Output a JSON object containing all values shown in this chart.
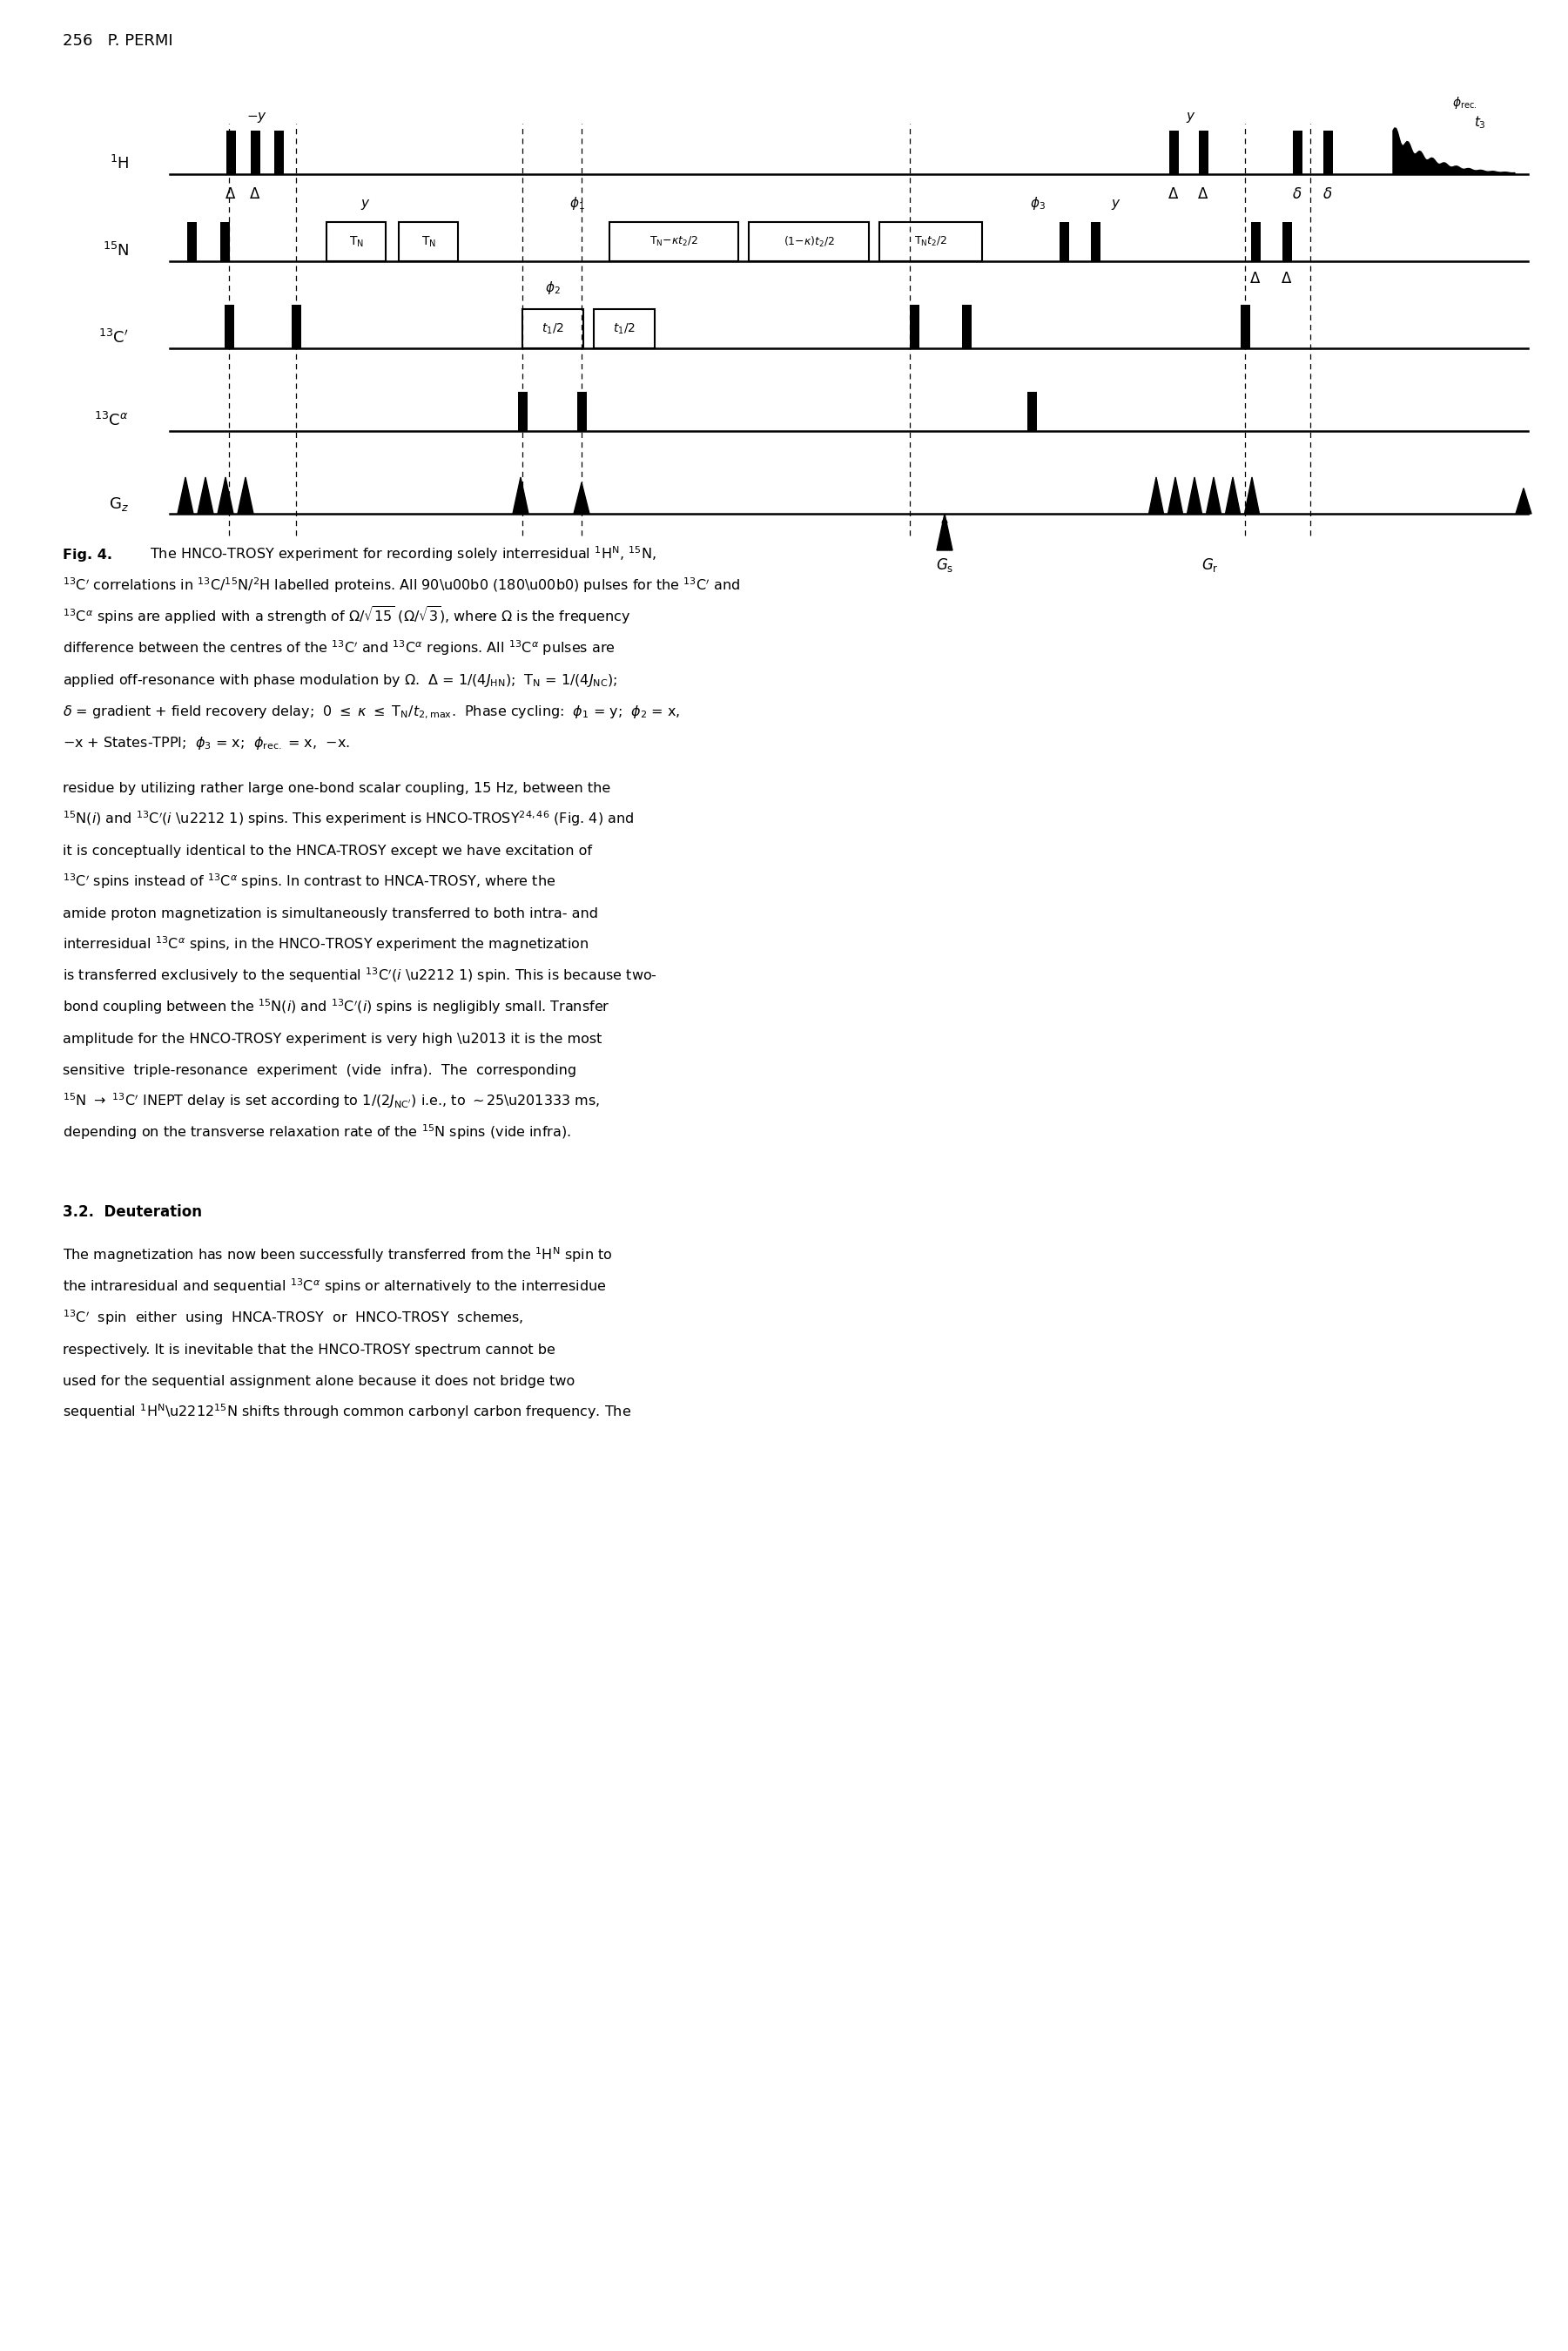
{
  "page_header": "256   P. PERMI",
  "background_color": "#ffffff",
  "figure_width": 18.01,
  "figure_height": 27.0,
  "cap_lines": [
    "  The HNCO-TROSY experiment for recording solely interresidual $^{1}$H$^{\\mathrm{N}}$, $^{15}$N,",
    "$^{13}$C$^{\\prime}$ correlations in $^{13}$C/$^{15}$N/$^{2}$H labelled proteins. All 90\\u00b0 (180\\u00b0) pulses for the $^{13}$C$^{\\prime}$ and",
    "$^{13}$C$^{\\alpha}$ spins are applied with a strength of $\\Omega$/$\\sqrt{15}$ ($\\Omega$/$\\sqrt{3}$), where $\\Omega$ is the frequency",
    "difference between the centres of the $^{13}$C$^{\\prime}$ and $^{13}$C$^{\\alpha}$ regions. All $^{13}$C$^{\\alpha}$ pulses are",
    "applied off-resonance with phase modulation by $\\Omega$.  $\\Delta$ = 1/(4$J_{\\mathrm{HN}}$);  T$_{\\mathrm{N}}$ = 1/(4$J_{\\mathrm{NC}}$);",
    "$\\delta$ = gradient + field recovery delay;  0 $\\leq$ $\\kappa$ $\\leq$ T$_{\\mathrm{N}}$/$t_{2,\\mathrm{max}}$.  Phase cycling:  $\\phi_1$ = y;  $\\phi_2$ = x,",
    "$-$x + States-TPPI;  $\\phi_3$ = x;  $\\phi_{\\mathrm{rec.}}$ = x,  $-$x."
  ],
  "body_lines": [
    "residue by utilizing rather large one-bond scalar coupling, 15 Hz, between the",
    "$^{15}$N($i$) and $^{13}$C$^{\\prime}$($i$ \\u2212 1) spins. This experiment is HNCO-TROSY$^{24,46}$ (Fig. 4) and",
    "it is conceptually identical to the HNCA-TROSY except we have excitation of",
    "$^{13}$C$^{\\prime}$ spins instead of $^{13}$C$^{\\alpha}$ spins. In contrast to HNCA-TROSY, where the",
    "amide proton magnetization is simultaneously transferred to both intra- and",
    "interresidual $^{13}$C$^{\\alpha}$ spins, in the HNCO-TROSY experiment the magnetization",
    "is transferred exclusively to the sequential $^{13}$C$^{\\prime}$($i$ \\u2212 1) spin. This is because two-",
    "bond coupling between the $^{15}$N($i$) and $^{13}$C$^{\\prime}$($i$) spins is negligibly small. Transfer",
    "amplitude for the HNCO-TROSY experiment is very high \\u2013 it is the most",
    "sensitive  triple-resonance  experiment  (vide  infra).  The  corresponding",
    "$^{15}$N $\\rightarrow$ $^{13}$C$^{\\prime}$ INEPT delay is set according to 1/(2$J_{\\mathrm{NC}^{\\prime}}$) i.e., to $\\sim$25\\u201333 ms,",
    "depending on the transverse relaxation rate of the $^{15}$N spins (vide infra)."
  ],
  "section_header": "3.2.  Deuteration",
  "section_lines": [
    "The magnetization has now been successfully transferred from the $^{1}$H$^{\\mathrm{N}}$ spin to",
    "the intraresidual and sequential $^{13}$C$^{\\alpha}$ spins or alternatively to the interresidue",
    "$^{13}$C$^{\\prime}$  spin  either  using  HNCA-TROSY  or  HNCO-TROSY  schemes,",
    "respectively. It is inevitable that the HNCO-TROSY spectrum cannot be",
    "used for the sequential assignment alone because it does not bridge two",
    "sequential $^{1}$H$^{\\mathrm{N}}$\\u2212$^{15}$N shifts through common carbonyl carbon frequency. The"
  ]
}
